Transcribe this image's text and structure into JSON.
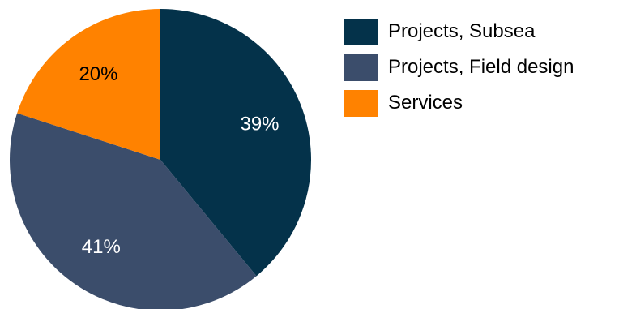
{
  "chart_data": {
    "type": "pie",
    "start": "top",
    "direction": "clockwise",
    "slices": [
      {
        "label": "Projects, Subsea",
        "value": 39,
        "display": "39%",
        "color": "#04324a",
        "label_color": "#ffffff"
      },
      {
        "label": "Projects, Field design",
        "value": 41,
        "display": "41%",
        "color": "#3b4d6b",
        "label_color": "#ffffff"
      },
      {
        "label": "Services",
        "value": 20,
        "display": "20%",
        "color": "#ff8200",
        "label_color": "#000000"
      }
    ],
    "legend": {
      "position": "right",
      "items": [
        {
          "label": "Projects, Subsea",
          "color": "#04324a"
        },
        {
          "label": "Projects, Field design",
          "color": "#3b4d6b"
        },
        {
          "label": "Services",
          "color": "#ff8200"
        }
      ]
    }
  }
}
